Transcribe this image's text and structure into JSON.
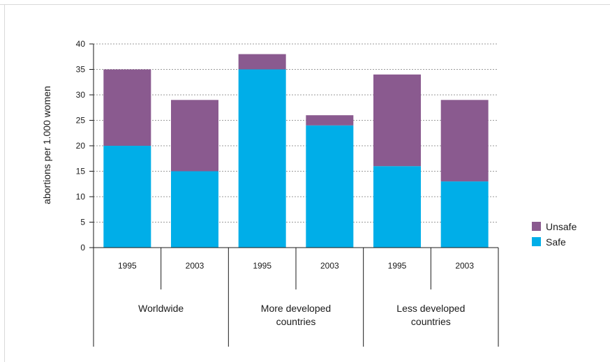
{
  "chart_data": {
    "type": "bar",
    "stacked": true,
    "ylabel": "abortions per 1.000 women",
    "ylim": [
      0,
      40
    ],
    "yticks": [
      "0",
      "5",
      "10",
      "15",
      "20",
      "25",
      "30",
      "35",
      "40"
    ],
    "grid": true,
    "legend_position": "right",
    "categories": [
      "1995",
      "2003",
      "1995",
      "2003",
      "1995",
      "2003"
    ],
    "groups": [
      {
        "label_lines": [
          "Worldwide"
        ],
        "span": 2
      },
      {
        "label_lines": [
          "More developed",
          "countries"
        ],
        "span": 2
      },
      {
        "label_lines": [
          "Less developed",
          "countries"
        ],
        "span": 2
      }
    ],
    "series": [
      {
        "name": "Safe",
        "color": "#00aee8",
        "values": [
          20,
          15,
          35,
          24,
          16,
          13
        ]
      },
      {
        "name": "Unsafe",
        "color": "#8a5a8f",
        "values": [
          15,
          14,
          3,
          2,
          18,
          16
        ]
      }
    ],
    "legend_order": [
      "Unsafe",
      "Safe"
    ]
  }
}
